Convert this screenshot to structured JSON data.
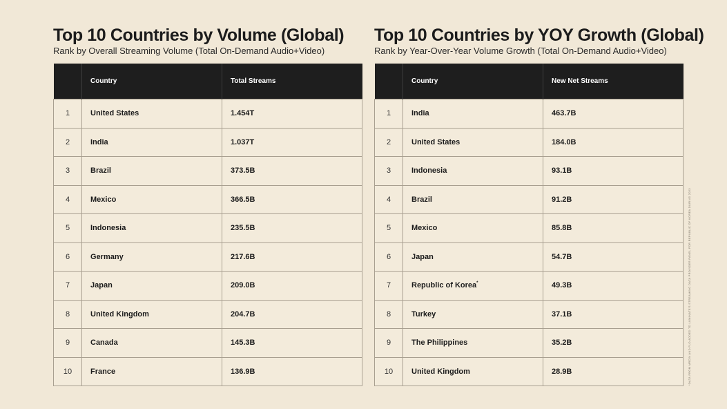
{
  "left": {
    "title": "Top 10 Countries by Volume (Global)",
    "subtitle": "Rank by Overall Streaming Volume (Total On-Demand Audio+Video)",
    "headers": [
      "",
      "Country",
      "Total Streams"
    ],
    "rows": [
      {
        "rank": "1",
        "country": "United States",
        "value": "1.454T"
      },
      {
        "rank": "2",
        "country": "India",
        "value": "1.037T"
      },
      {
        "rank": "3",
        "country": "Brazil",
        "value": "373.5B"
      },
      {
        "rank": "4",
        "country": "Mexico",
        "value": "366.5B"
      },
      {
        "rank": "5",
        "country": "Indonesia",
        "value": "235.5B"
      },
      {
        "rank": "6",
        "country": "Germany",
        "value": "217.6B"
      },
      {
        "rank": "7",
        "country": "Japan",
        "value": "209.0B"
      },
      {
        "rank": "8",
        "country": "United Kingdom",
        "value": "204.7B"
      },
      {
        "rank": "9",
        "country": "Canada",
        "value": "145.3B"
      },
      {
        "rank": "10",
        "country": "France",
        "value": "136.9B"
      }
    ]
  },
  "right": {
    "title": "Top 10 Countries by YOY Growth (Global)",
    "subtitle": "Rank by Year-Over-Year Volume Growth (Total On-Demand Audio+Video)",
    "headers": [
      "",
      "Country",
      "New Net Streams"
    ],
    "rows": [
      {
        "rank": "1",
        "country": "India",
        "value": "463.7B"
      },
      {
        "rank": "2",
        "country": "United States",
        "value": "184.0B"
      },
      {
        "rank": "3",
        "country": "Indonesia",
        "value": "93.1B"
      },
      {
        "rank": "4",
        "country": "Brazil",
        "value": "91.2B"
      },
      {
        "rank": "5",
        "country": "Mexico",
        "value": "85.8B"
      },
      {
        "rank": "6",
        "country": "Japan",
        "value": "54.7B"
      },
      {
        "rank": "7",
        "country": "Republic of Korea",
        "marker": "*",
        "value": "49.3B"
      },
      {
        "rank": "8",
        "country": "Turkey",
        "value": "37.1B"
      },
      {
        "rank": "9",
        "country": "The Philippines",
        "value": "35.2B"
      },
      {
        "rank": "10",
        "country": "United Kingdom",
        "value": "28.9B"
      }
    ]
  },
  "footnote": "*DATA FROM MRC/N AND FLO ADDED TO LUMINATE'S STREAMING DATA PROVIDER PANEL FOR REPUBLIC OF KOREA DURING 2023"
}
